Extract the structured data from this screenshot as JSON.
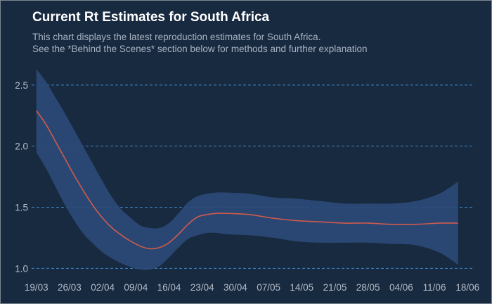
{
  "title": "Current Rt Estimates for South Africa",
  "subtitle_line1": "This chart displays the latest reproduction estimates for South Africa.",
  "subtitle_line2": "See the *Behind the Scenes* section below for methods and further explanation",
  "colors": {
    "background": "#182a40",
    "band": "#2b4a78",
    "line": "#d05a4e",
    "grid": "#3c86c7",
    "text": "#b3bcc7"
  },
  "chart_data": {
    "type": "line",
    "title": "Current Rt Estimates for South Africa",
    "xlabel": "",
    "ylabel": "",
    "x_ticks": [
      "19/03",
      "26/03",
      "02/04",
      "09/04",
      "16/04",
      "23/04",
      "30/04",
      "07/05",
      "14/05",
      "21/05",
      "28/05",
      "04/06",
      "11/06",
      "18/06"
    ],
    "y_ticks": [
      1.0,
      1.5,
      2.0,
      2.5
    ],
    "ylim": [
      0.95,
      2.62
    ],
    "xlim_days": [
      -1,
      92
    ],
    "grid": "horizontal-dashed",
    "series": [
      {
        "x": [
          0,
          2,
          4,
          6,
          8,
          10,
          12,
          14,
          16,
          18,
          20,
          22,
          24,
          26,
          28,
          30,
          32,
          34,
          36,
          38,
          40,
          45,
          50,
          55,
          60,
          65,
          70,
          75,
          80,
          85,
          89
        ],
        "y": [
          2.29,
          2.18,
          2.04,
          1.9,
          1.76,
          1.63,
          1.51,
          1.41,
          1.33,
          1.27,
          1.22,
          1.18,
          1.16,
          1.17,
          1.21,
          1.28,
          1.36,
          1.42,
          1.44,
          1.45,
          1.45,
          1.44,
          1.41,
          1.39,
          1.38,
          1.37,
          1.37,
          1.36,
          1.36,
          1.37,
          1.37
        ],
        "lower": [
          1.95,
          1.82,
          1.67,
          1.52,
          1.39,
          1.28,
          1.2,
          1.13,
          1.08,
          1.04,
          1.01,
          0.99,
          0.99,
          1.02,
          1.09,
          1.17,
          1.24,
          1.27,
          1.29,
          1.29,
          1.28,
          1.27,
          1.25,
          1.22,
          1.21,
          1.21,
          1.21,
          1.2,
          1.19,
          1.13,
          1.03
        ],
        "upper": [
          2.63,
          2.53,
          2.4,
          2.27,
          2.13,
          1.99,
          1.85,
          1.71,
          1.58,
          1.48,
          1.41,
          1.35,
          1.33,
          1.33,
          1.37,
          1.45,
          1.54,
          1.59,
          1.61,
          1.62,
          1.62,
          1.61,
          1.58,
          1.57,
          1.55,
          1.53,
          1.53,
          1.53,
          1.55,
          1.61,
          1.71
        ]
      }
    ]
  }
}
